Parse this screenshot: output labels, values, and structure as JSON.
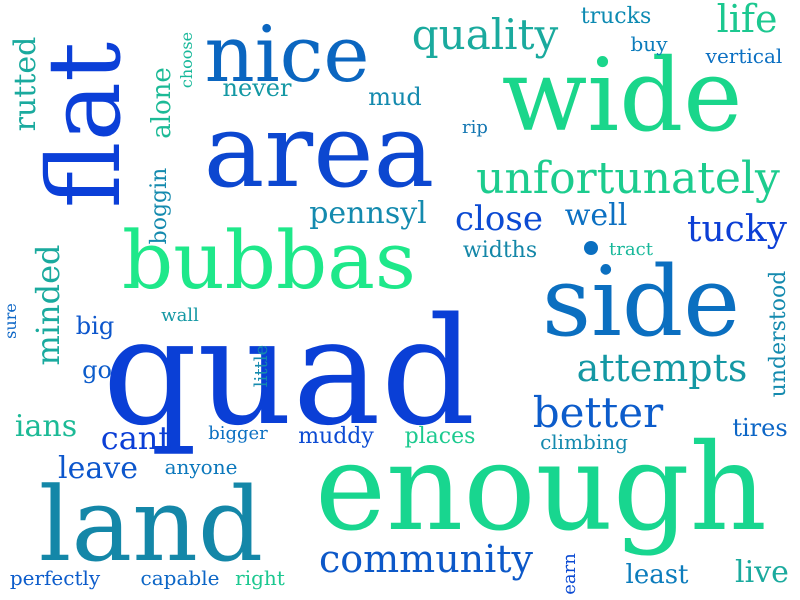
{
  "words": [
    {
      "text": "quad",
      "color": "#0a3fd6"
    },
    {
      "text": "enough",
      "color": "#18d68f"
    },
    {
      "text": "wide",
      "color": "#1ad68b"
    },
    {
      "text": "area",
      "color": "#0c47d0"
    },
    {
      "text": "side",
      "color": "#0b6fc0"
    },
    {
      "text": "land",
      "color": "#1487a8"
    },
    {
      "text": "flat",
      "color": "#0b3fd8"
    },
    {
      "text": "bubbas",
      "color": "#1ee88a"
    },
    {
      "text": "nice",
      "color": "#0b66c0"
    },
    {
      "text": "unfortunately",
      "color": "#1ccc8e"
    },
    {
      "text": "quality",
      "color": "#1aaa9e"
    },
    {
      "text": "community",
      "color": "#0c58c8"
    },
    {
      "text": "attempts",
      "color": "#1498a4"
    },
    {
      "text": "better",
      "color": "#0c5ccb"
    },
    {
      "text": "close",
      "color": "#0c4bd3"
    },
    {
      "text": "well",
      "color": "#0c70c2"
    },
    {
      "text": "pennsyl",
      "color": "#148aae"
    },
    {
      "text": "tucky",
      "color": "#0c3fd5"
    },
    {
      "text": "life",
      "color": "#1cc890"
    },
    {
      "text": "minded",
      "color": "#1aaa9e"
    },
    {
      "text": "leave",
      "color": "#0c56cc"
    },
    {
      "text": "cant",
      "color": "#0b3ed6"
    },
    {
      "text": "ians",
      "color": "#1cba96"
    },
    {
      "text": "muddy",
      "color": "#0c4bd3"
    },
    {
      "text": "places",
      "color": "#1cca8f"
    },
    {
      "text": "live",
      "color": "#1aaa9e"
    },
    {
      "text": "least",
      "color": "#0c7cbc"
    },
    {
      "text": "mud",
      "color": "#148aae"
    },
    {
      "text": "never",
      "color": "#1498a4"
    },
    {
      "text": "trucks",
      "color": "#0c8ab2"
    },
    {
      "text": "buy",
      "color": "#0c7cbc"
    },
    {
      "text": "vertical",
      "color": "#0c70c2"
    },
    {
      "text": "widths",
      "color": "#1487a8"
    },
    {
      "text": "tract",
      "color": "#18b89a"
    },
    {
      "text": "understood",
      "color": "#148aae"
    },
    {
      "text": "tires",
      "color": "#0c66c6"
    },
    {
      "text": "climbing",
      "color": "#148aae"
    },
    {
      "text": "anyone",
      "color": "#0c78bc"
    },
    {
      "text": "bigger",
      "color": "#0c70c2"
    },
    {
      "text": "big",
      "color": "#0c56cc"
    },
    {
      "text": "go",
      "color": "#0c5ccb"
    },
    {
      "text": "wall",
      "color": "#1498a4"
    },
    {
      "text": "rip",
      "color": "#1477b2"
    },
    {
      "text": "perfectly",
      "color": "#0c5ccb"
    },
    {
      "text": "capable",
      "color": "#0c66c6"
    },
    {
      "text": "right",
      "color": "#1cc890"
    },
    {
      "text": "rutted",
      "color": "#1aaa9e"
    },
    {
      "text": "boggin",
      "color": "#148aae"
    },
    {
      "text": "alone",
      "color": "#1cba96"
    },
    {
      "text": "choose",
      "color": "#18b89a"
    },
    {
      "text": "sure",
      "color": "#0c66c6"
    },
    {
      "text": "little",
      "color": "#148aae"
    },
    {
      "text": "earn",
      "color": "#0c4bd3"
    }
  ]
}
